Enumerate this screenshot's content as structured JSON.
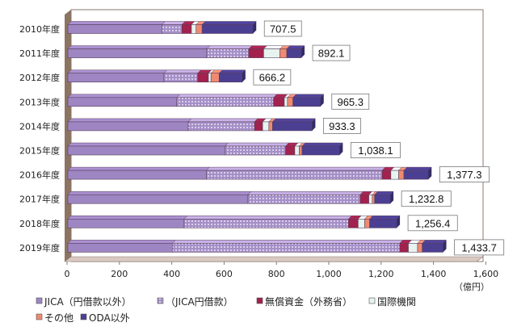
{
  "chart_data": {
    "type": "bar",
    "orientation": "horizontal",
    "stacked": true,
    "title": "",
    "xlabel": "",
    "unit_label": "（億円）",
    "xlim": [
      0,
      1600
    ],
    "x_ticks": [
      0,
      200,
      400,
      600,
      800,
      1000,
      1200,
      1400,
      1600
    ],
    "x_tick_labels": [
      "0",
      "200",
      "400",
      "600",
      "800",
      "1,000",
      "1,200",
      "1,400",
      "1,600"
    ],
    "categories": [
      "2010年度",
      "2011年度",
      "2012年度",
      "2013年度",
      "2014年度",
      "2015年度",
      "2016年度",
      "2017年度",
      "2018年度",
      "2019年度"
    ],
    "totals": [
      707.5,
      892.1,
      666.2,
      965.3,
      933.3,
      1038.1,
      1377.3,
      1232.8,
      1256.4,
      1433.7
    ],
    "total_labels": [
      "707.5",
      "892.1",
      "666.2",
      "965.3",
      "933.3",
      "1,038.1",
      "1,377.3",
      "1,232.8",
      "1,256.4",
      "1,433.7"
    ],
    "series": [
      {
        "name": "JICA（円借款以外）",
        "color": "#9d86c2",
        "values": [
          359,
          531,
          367,
          416,
          460,
          600,
          529,
          688,
          444,
          399
        ]
      },
      {
        "name": "（JICA円借款）",
        "color": "#b9a5d6",
        "pattern": "dots",
        "values": [
          77,
          160,
          129,
          370,
          253,
          232,
          672,
          429,
          628,
          869
        ]
      },
      {
        "name": "無償資金（外務省）",
        "color": "#a3214d",
        "values": [
          36,
          57,
          41,
          41,
          31,
          35,
          33,
          33,
          37,
          33
        ]
      },
      {
        "name": "国際機関",
        "color": "#e6f3ef",
        "values": [
          18,
          62,
          10,
          12,
          24,
          17,
          30,
          13,
          25,
          35
        ]
      },
      {
        "name": "その他",
        "color": "#ef8a70",
        "values": [
          23,
          26,
          31,
          21,
          14,
          11,
          20,
          9,
          19,
          18
        ]
      },
      {
        "name": "ODA以外",
        "color": "#4b3f92",
        "values": [
          194.5,
          56.1,
          88.2,
          105.3,
          151.3,
          143.1,
          93.3,
          59.8,
          103.4,
          79.7
        ]
      }
    ],
    "legend_position": "bottom"
  }
}
